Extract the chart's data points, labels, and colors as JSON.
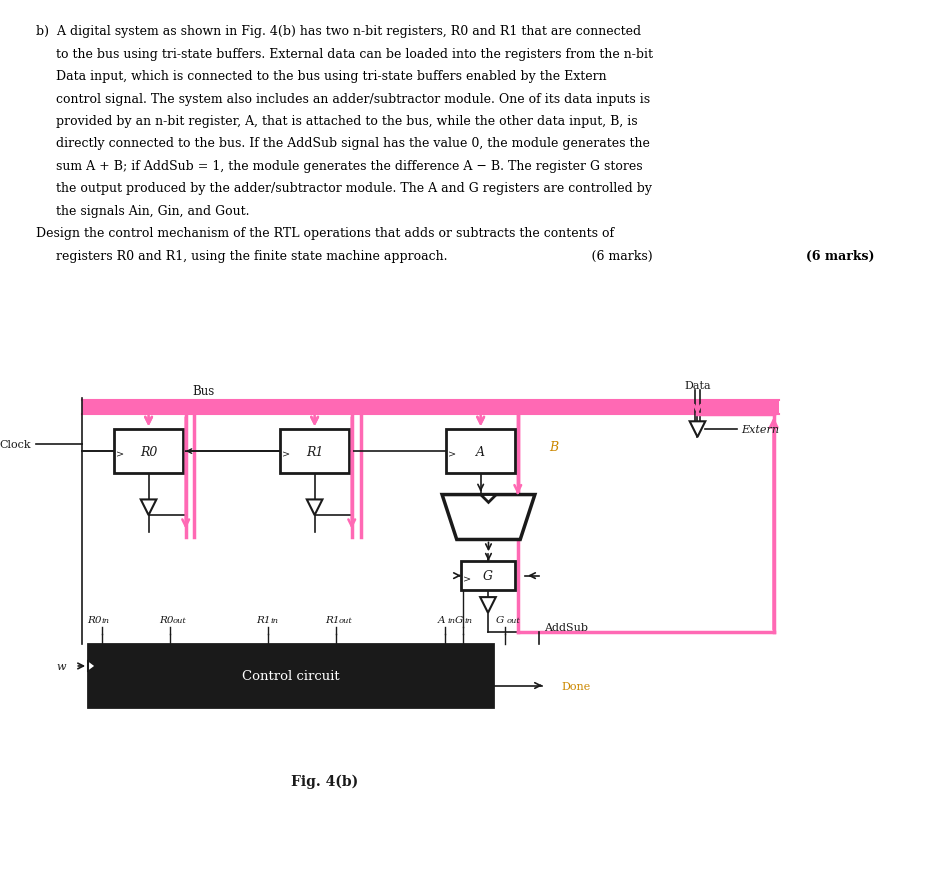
{
  "background_color": "#ffffff",
  "text_color": "#000000",
  "pink_color": "#FF69B4",
  "dark_color": "#1a1a1a",
  "title": "Fig. 4(b)",
  "paragraph": [
    "b) A digital system as shown in Fig. 4(b) has two n-bit registers, R0 and R1 that are connected",
    "    to the bus using tri-state buffers. External data can be loaded into the registers from the n-bit",
    "    Data input, which is connected to the bus using tri-state buffers enabled by the Extern",
    "    control signal. The system also includes an adder/subtractor module. One of its data inputs is",
    "    provided by an n-bit register, A, that is attached to the bus, while the other data input, B, is",
    "    directly connected to the bus. If the AddSub signal has the value 0, the module generates the",
    "    sum A + B; if AddSub = 1, the module generates the difference A - B. The register G stores",
    "    the output produced by the adder/subtractor module. The A and G registers are controlled by",
    "    the signals Ain, Gin, and Gout.",
    "Design the control mechanism of the RTL operations that adds or subtracts the contents of",
    "    registers R0 and R1, using the finite state machine approach.                                                (6 marks)"
  ]
}
